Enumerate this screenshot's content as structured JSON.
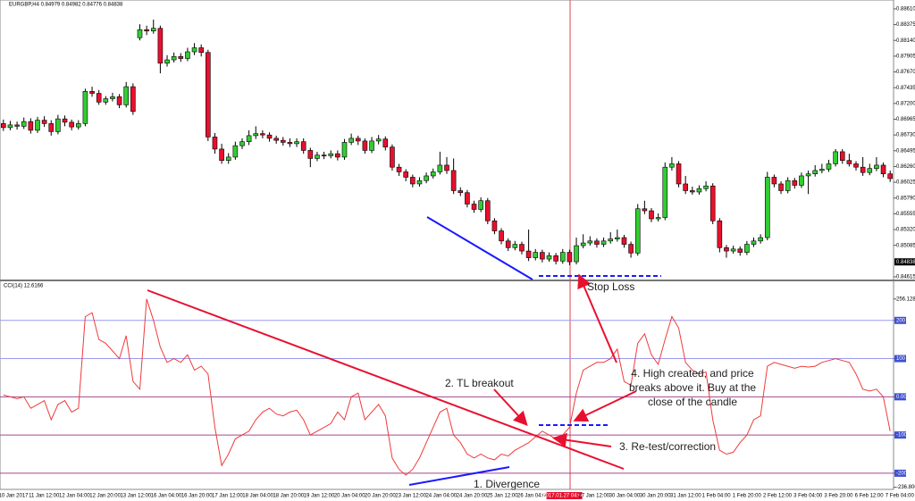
{
  "chart_data": [
    {
      "type": "candlestick",
      "title": "EURGBP,H4  0.84979 0.84982 0.84776 0.84838",
      "ylim": [
        0.84575,
        0.88729
      ],
      "yticks": [
        {
          "value": 0.8861,
          "label": "0.88610"
        },
        0.88375,
        {
          "value": 0.8814,
          "label": "0.88140"
        },
        0.87905,
        {
          "value": 0.8767,
          "label": "0.87670"
        },
        0.87435,
        {
          "value": 0.872,
          "label": "0.87200"
        },
        0.86965,
        {
          "value": 0.8673,
          "label": "0.86730"
        },
        0.86495,
        {
          "value": 0.8626,
          "label": "0.86260"
        },
        0.86025,
        {
          "value": 0.8579,
          "label": "0.85790"
        },
        0.85555,
        {
          "value": 0.8532,
          "label": "0.85320"
        },
        0.85085,
        0.84615
      ],
      "last_price": 0.84838,
      "up_color": "#32cd32",
      "down_color": "#e8102e",
      "candles": [
        [
          0.869,
          0.8696,
          0.8679,
          0.8684
        ],
        [
          0.8684,
          0.8694,
          0.868,
          0.8688
        ],
        [
          0.8688,
          0.8693,
          0.8681,
          0.8686
        ],
        [
          0.8686,
          0.8699,
          0.8682,
          0.8693
        ],
        [
          0.8693,
          0.8698,
          0.8675,
          0.868
        ],
        [
          0.868,
          0.87,
          0.8676,
          0.8695
        ],
        [
          0.8695,
          0.8701,
          0.8685,
          0.869
        ],
        [
          0.869,
          0.8695,
          0.8672,
          0.8678
        ],
        [
          0.8678,
          0.8703,
          0.8674,
          0.8697
        ],
        [
          0.8697,
          0.8702,
          0.8686,
          0.8692
        ],
        [
          0.8692,
          0.8696,
          0.868,
          0.8685
        ],
        [
          0.8685,
          0.8695,
          0.8681,
          0.869
        ],
        [
          0.869,
          0.8742,
          0.8686,
          0.8738
        ],
        [
          0.8738,
          0.8745,
          0.873,
          0.8735
        ],
        [
          0.8735,
          0.874,
          0.8718,
          0.8722
        ],
        [
          0.8722,
          0.8731,
          0.8718,
          0.8727
        ],
        [
          0.8727,
          0.8736,
          0.8723,
          0.873
        ],
        [
          0.873,
          0.8734,
          0.8713,
          0.8718
        ],
        [
          0.8718,
          0.8752,
          0.8714,
          0.8745
        ],
        [
          0.8745,
          0.875,
          0.8703,
          0.8708
        ],
        [
          0.8818,
          0.8838,
          0.8814,
          0.883
        ],
        [
          0.883,
          0.8836,
          0.8822,
          0.8828
        ],
        [
          0.8828,
          0.8845,
          0.8824,
          0.8832
        ],
        [
          0.8832,
          0.8836,
          0.8765,
          0.878
        ],
        [
          0.878,
          0.8792,
          0.8775,
          0.8785
        ],
        [
          0.8785,
          0.8796,
          0.8781,
          0.879
        ],
        [
          0.879,
          0.8795,
          0.8782,
          0.8787
        ],
        [
          0.8787,
          0.8803,
          0.8783,
          0.8797
        ],
        [
          0.8797,
          0.881,
          0.8792,
          0.8803
        ],
        [
          0.8803,
          0.8808,
          0.879,
          0.8796
        ],
        [
          0.8796,
          0.88,
          0.8664,
          0.867
        ],
        [
          0.867,
          0.8676,
          0.8645,
          0.8652
        ],
        [
          0.8652,
          0.866,
          0.863,
          0.8635
        ],
        [
          0.8635,
          0.8646,
          0.863,
          0.864
        ],
        [
          0.864,
          0.8663,
          0.8636,
          0.8657
        ],
        [
          0.8657,
          0.8668,
          0.8652,
          0.8663
        ],
        [
          0.8663,
          0.868,
          0.8658,
          0.8672
        ],
        [
          0.8672,
          0.8686,
          0.8667,
          0.8675
        ],
        [
          0.8675,
          0.868,
          0.8668,
          0.8673
        ],
        [
          0.8673,
          0.8677,
          0.8663,
          0.8668
        ],
        [
          0.8668,
          0.8672,
          0.866,
          0.8665
        ],
        [
          0.8665,
          0.867,
          0.8657,
          0.8662
        ],
        [
          0.8662,
          0.8668,
          0.8655,
          0.866
        ],
        [
          0.866,
          0.8668,
          0.8655,
          0.8663
        ],
        [
          0.8663,
          0.8668,
          0.8645,
          0.865
        ],
        [
          0.865,
          0.8654,
          0.8625,
          0.8638
        ],
        [
          0.8638,
          0.8648,
          0.8634,
          0.8643
        ],
        [
          0.8643,
          0.8648,
          0.8637,
          0.8642
        ],
        [
          0.8642,
          0.865,
          0.8638,
          0.8645
        ],
        [
          0.8645,
          0.865,
          0.8635,
          0.864
        ],
        [
          0.864,
          0.8667,
          0.8636,
          0.8662
        ],
        [
          0.8662,
          0.8675,
          0.8658,
          0.8668
        ],
        [
          0.8668,
          0.8672,
          0.8658,
          0.8664
        ],
        [
          0.8664,
          0.8668,
          0.8645,
          0.865
        ],
        [
          0.865,
          0.867,
          0.8646,
          0.8664
        ],
        [
          0.8664,
          0.8673,
          0.8659,
          0.8667
        ],
        [
          0.8667,
          0.8671,
          0.865,
          0.8655
        ],
        [
          0.8655,
          0.8659,
          0.862,
          0.8625
        ],
        [
          0.8625,
          0.863,
          0.8612,
          0.8618
        ],
        [
          0.8618,
          0.8622,
          0.8604,
          0.861
        ],
        [
          0.861,
          0.8614,
          0.8595,
          0.86
        ],
        [
          0.86,
          0.861,
          0.8596,
          0.8605
        ],
        [
          0.8605,
          0.8617,
          0.8601,
          0.8612
        ],
        [
          0.8612,
          0.8623,
          0.8608,
          0.8618
        ],
        [
          0.8618,
          0.8648,
          0.8614,
          0.8628
        ],
        [
          0.8628,
          0.864,
          0.8615,
          0.862
        ],
        [
          0.862,
          0.8638,
          0.8585,
          0.859
        ],
        [
          0.859,
          0.8595,
          0.8582,
          0.8587
        ],
        [
          0.8587,
          0.8591,
          0.8565,
          0.857
        ],
        [
          0.857,
          0.8575,
          0.8557,
          0.8562
        ],
        [
          0.8562,
          0.858,
          0.8558,
          0.8575
        ],
        [
          0.8575,
          0.8579,
          0.854,
          0.8545
        ],
        [
          0.8545,
          0.8549,
          0.8525,
          0.853
        ],
        [
          0.853,
          0.8534,
          0.851,
          0.8515
        ],
        [
          0.8515,
          0.8519,
          0.85,
          0.8505
        ],
        [
          0.8505,
          0.8515,
          0.8501,
          0.851
        ],
        [
          0.851,
          0.8514,
          0.8495,
          0.85
        ],
        [
          0.85,
          0.8532,
          0.8485,
          0.849
        ],
        [
          0.849,
          0.8503,
          0.8486,
          0.8498
        ],
        [
          0.8498,
          0.8502,
          0.8483,
          0.8488
        ],
        [
          0.8488,
          0.8498,
          0.8484,
          0.8493
        ],
        [
          0.8493,
          0.8497,
          0.848,
          0.8485
        ],
        [
          0.8485,
          0.8503,
          0.8481,
          0.8498
        ],
        [
          0.8498,
          0.8502,
          0.8479,
          0.8484
        ],
        [
          0.8484,
          0.852,
          0.848,
          0.8508
        ],
        [
          0.8508,
          0.8525,
          0.8504,
          0.8512
        ],
        [
          0.8512,
          0.8522,
          0.8508,
          0.8515
        ],
        [
          0.8515,
          0.8519,
          0.8505,
          0.851
        ],
        [
          0.851,
          0.852,
          0.8506,
          0.8515
        ],
        [
          0.8515,
          0.8528,
          0.8511,
          0.8518
        ],
        [
          0.8518,
          0.8532,
          0.8514,
          0.852
        ],
        [
          0.852,
          0.8524,
          0.8505,
          0.851
        ],
        [
          0.851,
          0.8514,
          0.849,
          0.8497
        ],
        [
          0.8497,
          0.857,
          0.8493,
          0.8563
        ],
        [
          0.8563,
          0.8575,
          0.8555,
          0.856
        ],
        [
          0.856,
          0.8564,
          0.8543,
          0.8548
        ],
        [
          0.8548,
          0.8556,
          0.8544,
          0.855
        ],
        [
          0.855,
          0.8632,
          0.8546,
          0.8625
        ],
        [
          0.8625,
          0.864,
          0.862,
          0.863
        ],
        [
          0.863,
          0.8634,
          0.8595,
          0.86
        ],
        [
          0.86,
          0.8612,
          0.8585,
          0.859
        ],
        [
          0.859,
          0.8596,
          0.8584,
          0.8588
        ],
        [
          0.8588,
          0.8598,
          0.8584,
          0.8593
        ],
        [
          0.8593,
          0.8604,
          0.8589,
          0.8597
        ],
        [
          0.8597,
          0.8601,
          0.854,
          0.8545
        ],
        [
          0.8545,
          0.8549,
          0.8498,
          0.8505
        ],
        [
          0.8505,
          0.8509,
          0.849,
          0.85
        ],
        [
          0.85,
          0.8508,
          0.8496,
          0.8503
        ],
        [
          0.8503,
          0.8507,
          0.8493,
          0.8498
        ],
        [
          0.8498,
          0.8515,
          0.8494,
          0.851
        ],
        [
          0.851,
          0.852,
          0.8506,
          0.8515
        ],
        [
          0.8515,
          0.8525,
          0.8511,
          0.852
        ],
        [
          0.852,
          0.8618,
          0.8516,
          0.861
        ],
        [
          0.861,
          0.8614,
          0.8595,
          0.86
        ],
        [
          0.86,
          0.8604,
          0.8585,
          0.859
        ],
        [
          0.859,
          0.861,
          0.8586,
          0.8605
        ],
        [
          0.8605,
          0.8609,
          0.8593,
          0.8598
        ],
        [
          0.8598,
          0.8617,
          0.8594,
          0.8612
        ],
        [
          0.8612,
          0.862,
          0.8585,
          0.8615
        ],
        [
          0.8615,
          0.8628,
          0.8611,
          0.862
        ],
        [
          0.862,
          0.863,
          0.8616,
          0.8622
        ],
        [
          0.8622,
          0.8636,
          0.8618,
          0.863
        ],
        [
          0.863,
          0.8652,
          0.8626,
          0.8648
        ],
        [
          0.8648,
          0.8652,
          0.863,
          0.8635
        ],
        [
          0.8635,
          0.8645,
          0.8626,
          0.863
        ],
        [
          0.863,
          0.8634,
          0.862,
          0.8625
        ],
        [
          0.8625,
          0.864,
          0.8612,
          0.8617
        ],
        [
          0.8617,
          0.863,
          0.8613,
          0.8623
        ],
        [
          0.8623,
          0.864,
          0.8619,
          0.8628
        ],
        [
          0.8628,
          0.8632,
          0.861,
          0.8615
        ],
        [
          0.8615,
          0.862,
          0.8603,
          0.8608
        ]
      ]
    },
    {
      "type": "line",
      "title": "CCI(14) 12.6166",
      "color": "#f03a3a",
      "ylim": [
        -240,
        300
      ],
      "yticks": [
        256.1283,
        200,
        100,
        {
          "value": 0,
          "label": "0.00"
        },
        -100,
        -200,
        -236.8004
      ],
      "values": [
        5,
        0,
        -5,
        0,
        -30,
        -20,
        -10,
        -60,
        -20,
        -10,
        -40,
        -30,
        210,
        220,
        150,
        140,
        120,
        100,
        160,
        40,
        20,
        256,
        200,
        130,
        90,
        100,
        90,
        110,
        70,
        80,
        60,
        -80,
        -180,
        -150,
        -110,
        -100,
        -90,
        -60,
        -40,
        -30,
        -45,
        -50,
        -40,
        -35,
        -60,
        -100,
        -90,
        -80,
        -70,
        -40,
        -60,
        0,
        10,
        -60,
        -40,
        -20,
        -50,
        -160,
        -190,
        -205,
        -190,
        -160,
        -120,
        -80,
        -40,
        -30,
        -100,
        -120,
        -150,
        -160,
        -150,
        -160,
        -165,
        -150,
        -155,
        -140,
        -130,
        -120,
        -105,
        -90,
        -100,
        -110,
        -100,
        -80,
        10,
        70,
        80,
        90,
        90,
        100,
        125,
        40,
        30,
        140,
        165,
        110,
        85,
        150,
        210,
        180,
        90,
        70,
        60,
        65,
        -60,
        -140,
        -150,
        -145,
        -120,
        -100,
        -60,
        -50,
        80,
        90,
        85,
        80,
        75,
        80,
        78,
        80,
        90,
        95,
        100,
        95,
        90,
        60,
        20,
        15,
        20,
        0,
        -90
      ],
      "xticks": [
        "10 Jan 2017",
        "11 Jan 12:00",
        "12 Jan 04:00",
        "12 Jan 20:00",
        "13 Jan 12:00",
        "16 Jan 04:00",
        "16 Jan 20:00",
        "17 Jan 12:00",
        "18 Jan 04:00",
        "18 Jan 20:00",
        "19 Jan 12:00",
        "20 Jan 04:00",
        "20 Jan 20:00",
        "23 Jan 12:00",
        "24 Jan 04:00",
        "24 Jan 20:00",
        "25 Jan 12:00",
        "26 Jan 04:00",
        "2017.01.27 04:00",
        "27 Jan 12:00",
        "30 Jan 04:00",
        "30 Jan 20:00",
        "31 Jan 12:00",
        "1 Feb 04:00",
        "1 Feb 20:00",
        "2 Feb 12:00",
        "3 Feb 04:00",
        "3 Feb 20:00",
        "6 Feb 12:00",
        "7 Feb 04:00"
      ],
      "annotations": [
        "Stop Loss",
        "1. Divergence",
        "2. TL breakout",
        "3. Re-test/correction",
        "4. High created, and price breaks above it. Buy at the close of the candle"
      ]
    }
  ]
}
